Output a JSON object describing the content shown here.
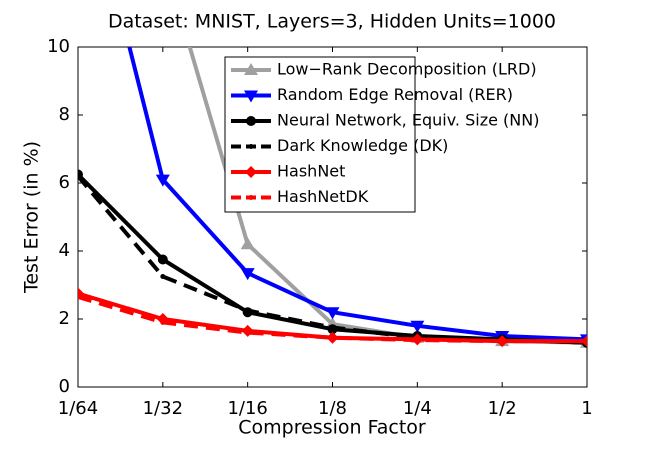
{
  "chart_data": {
    "type": "line",
    "title": "Dataset: MNIST,  Layers=3,  Hidden Units=1000",
    "x_label": "Compression Factor",
    "y_label": "Test Error (in %)",
    "categories": [
      "1/64",
      "1/32",
      "1/16",
      "1/8",
      "1/4",
      "1/2",
      "1"
    ],
    "ylim": [
      0,
      10
    ],
    "yticks": [
      0,
      2,
      4,
      6,
      8,
      10
    ],
    "legend": "upper-right",
    "series": [
      {
        "name": "Low−Rank Decomposition (LRD)",
        "color": "#a0a0a0",
        "marker": "triangle-up",
        "dash": false,
        "values": [
          null,
          12.7,
          4.2,
          1.85,
          1.45,
          1.35,
          1.3
        ]
      },
      {
        "name": "Random Edge Removal (RER)",
        "color": "#0000ff",
        "marker": "triangle-down",
        "dash": false,
        "values": [
          16,
          6.1,
          3.35,
          2.2,
          1.8,
          1.5,
          1.4
        ]
      },
      {
        "name": "Neural Network, Equiv. Size (NN)",
        "color": "#000000",
        "marker": "circle",
        "dash": false,
        "values": [
          6.25,
          3.75,
          2.2,
          1.7,
          1.5,
          1.4,
          1.3
        ]
      },
      {
        "name": "Dark Knowledge (DK)",
        "color": "#000000",
        "marker": "dot",
        "dash": true,
        "values": [
          6.2,
          3.25,
          2.25,
          1.75,
          1.45,
          1.4,
          1.3
        ]
      },
      {
        "name": "HashNet",
        "color": "#ff0000",
        "marker": "diamond",
        "dash": false,
        "values": [
          2.75,
          2.0,
          1.65,
          1.45,
          1.4,
          1.35,
          1.35
        ]
      },
      {
        "name": "HashNetDK",
        "color": "#ff0000",
        "marker": "dot",
        "dash": true,
        "values": [
          2.65,
          1.9,
          1.6,
          1.45,
          1.38,
          1.35,
          1.35
        ]
      }
    ]
  }
}
